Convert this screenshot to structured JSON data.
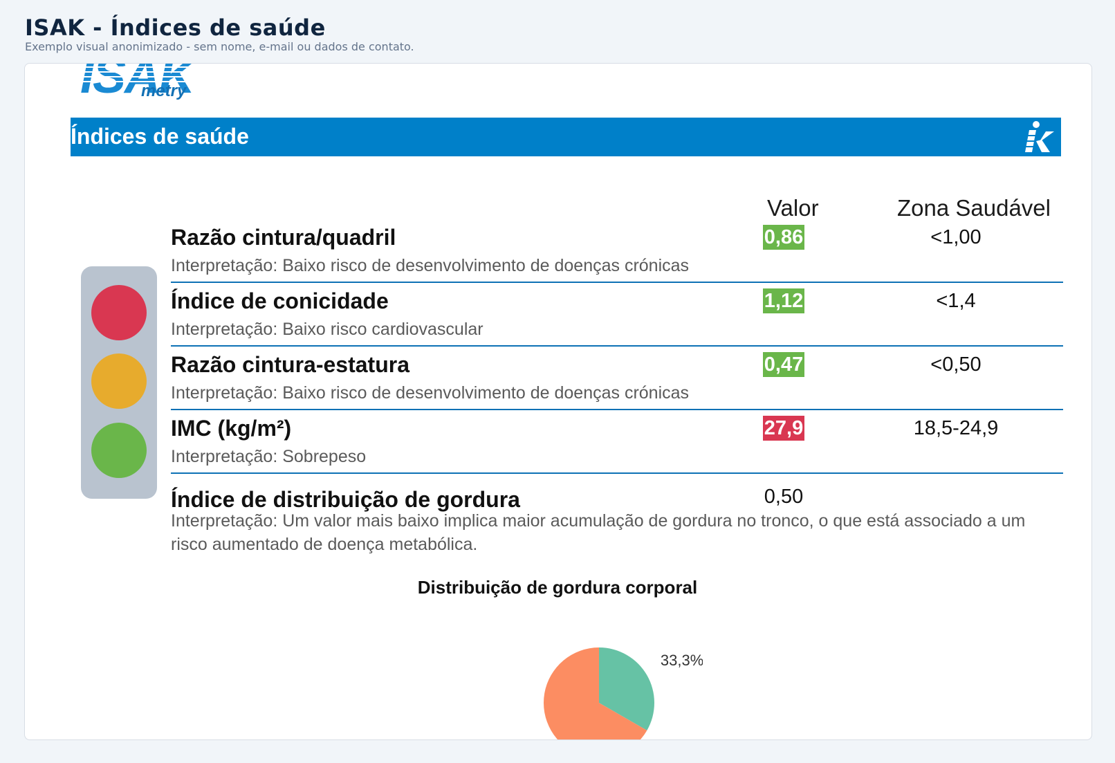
{
  "header": {
    "title": "ISAK - Índices de saúde",
    "subtitle": "Exemplo visual anonimizado - sem nome, e-mail ou dados de contato."
  },
  "logo": {
    "main": "ISAK",
    "sub": "metry"
  },
  "section": {
    "title": "Índices de saúde",
    "icon": "k-icon"
  },
  "columns": {
    "valor": "Valor",
    "zona": "Zona Saudável"
  },
  "indices": [
    {
      "name": "Razão cintura/quadril",
      "value": "0,86",
      "status": "green",
      "zone": "<1,00",
      "interpretation": "Interpretação: Baixo risco de desenvolvimento de doenças crónicas"
    },
    {
      "name": "Índice de conicidade",
      "value": "1,12",
      "status": "green",
      "zone": "<1,4",
      "interpretation": "Interpretação: Baixo risco cardiovascular"
    },
    {
      "name": "Razão cintura-estatura",
      "value": "0,47",
      "status": "green",
      "zone": "<0,50",
      "interpretation": "Interpretação: Baixo risco de desenvolvimento de doenças crónicas"
    },
    {
      "name": "IMC (kg/m²)",
      "value": "27,9",
      "status": "red",
      "zone": "18,5-24,9",
      "interpretation": "Interpretação: Sobrepeso"
    },
    {
      "name": "Índice de distribuição de gordura",
      "value": "0,50",
      "status": "plain",
      "zone": "",
      "interpretation": "Interpretação: Um valor mais baixo implica maior acumulação de gordura no tronco, o que está associado a um risco aumentado de doença metabólica."
    }
  ],
  "colors": {
    "green": "#6ab64a",
    "amber": "#e7ab2d",
    "red": "#d93751",
    "brand": "#0080c9"
  },
  "chart_data": {
    "type": "pie",
    "title": "Distribuição de gordura corporal",
    "slices": [
      {
        "value": 33.3,
        "label": "33,3%",
        "color": "#66c2a5"
      },
      {
        "value": 66.7,
        "label": "",
        "color": "#fc8d62"
      }
    ]
  }
}
